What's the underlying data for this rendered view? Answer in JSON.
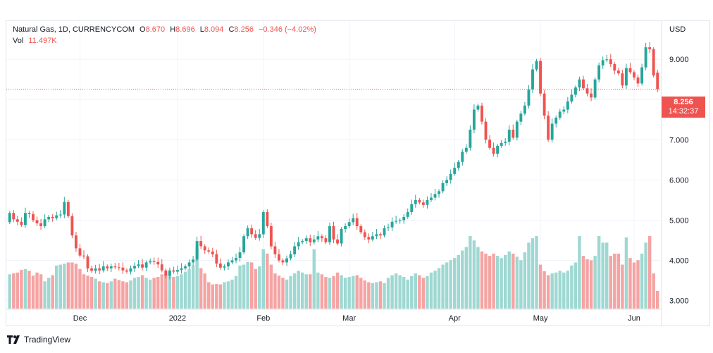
{
  "legend": {
    "symbol": "Natural Gas, 1D, CURRENCYCOM",
    "open_label": "O",
    "open": "8.670",
    "high_label": "H",
    "high": "8.696",
    "low_label": "L",
    "low": "8.094",
    "close_label": "C",
    "close": "8.256",
    "change": "−0.346 (−4.02%)",
    "vol_label": "Vol",
    "vol": "11.497K"
  },
  "axis": {
    "currency": "USD"
  },
  "last_price": {
    "price": "8.256",
    "countdown": "14:32:37"
  },
  "branding": {
    "logo_text": "TradingView"
  },
  "colors": {
    "up": "#26a69a",
    "down": "#ef5350",
    "vol_up": "#9fd8d2",
    "vol_down": "#f5a3a3",
    "grid": "#f0f3fa",
    "text": "#131722"
  },
  "chart_data": {
    "type": "candlestick",
    "y_ticks": [
      3.0,
      4.0,
      5.0,
      6.0,
      7.0,
      8.0,
      9.0
    ],
    "y_tick_labels": [
      "3.000",
      "4.000",
      "5.000",
      "6.000",
      "7.000",
      "",
      "9.000"
    ],
    "ylim": [
      2.8,
      9.95
    ],
    "x_ticks": [
      {
        "index": 18,
        "label": "Dec"
      },
      {
        "index": 43,
        "label": "2022"
      },
      {
        "index": 65,
        "label": "Feb"
      },
      {
        "index": 87,
        "label": "Mar"
      },
      {
        "index": 114,
        "label": "Apr"
      },
      {
        "index": 136,
        "label": "May"
      },
      {
        "index": 160,
        "label": "Jun"
      }
    ],
    "closes": [
      5.18,
      5.02,
      4.96,
      4.88,
      5.18,
      5.15,
      5.0,
      4.92,
      4.85,
      5.02,
      5.08,
      5.05,
      5.12,
      5.14,
      5.45,
      5.1,
      4.62,
      4.3,
      4.12,
      4.1,
      3.8,
      3.74,
      3.8,
      3.75,
      3.85,
      3.8,
      3.85,
      3.83,
      3.82,
      3.75,
      3.72,
      3.8,
      3.86,
      3.9,
      3.82,
      3.95,
      3.98,
      3.96,
      3.9,
      3.75,
      3.62,
      3.75,
      3.72,
      3.76,
      3.8,
      3.85,
      3.95,
      4.02,
      4.48,
      4.35,
      4.25,
      4.22,
      4.15,
      3.92,
      3.82,
      3.85,
      3.95,
      4.0,
      4.06,
      4.2,
      4.6,
      4.8,
      4.65,
      4.56,
      4.65,
      5.2,
      4.85,
      4.35,
      4.15,
      4.0,
      3.95,
      4.05,
      4.15,
      4.35,
      4.45,
      4.48,
      4.55,
      4.45,
      4.52,
      4.6,
      4.55,
      4.45,
      4.85,
      4.52,
      4.42,
      4.78,
      4.85,
      4.95,
      5.05,
      4.85,
      4.7,
      4.58,
      4.52,
      4.6,
      4.65,
      4.62,
      4.8,
      4.82,
      4.96,
      4.98,
      5.0,
      5.08,
      5.2,
      5.4,
      5.5,
      5.44,
      5.38,
      5.5,
      5.56,
      5.65,
      5.72,
      5.92,
      6.0,
      6.15,
      6.3,
      6.45,
      6.7,
      6.8,
      7.25,
      7.75,
      7.85,
      7.45,
      7.0,
      6.8,
      6.65,
      6.85,
      6.92,
      6.95,
      7.25,
      7.05,
      7.45,
      7.65,
      7.85,
      8.25,
      8.75,
      8.96,
      8.15,
      7.6,
      7.0,
      7.4,
      7.55,
      7.7,
      7.75,
      7.95,
      8.12,
      8.3,
      8.5,
      8.28,
      8.15,
      8.05,
      8.5,
      8.85,
      8.98,
      9.0,
      8.88,
      8.72,
      8.65,
      8.35,
      8.78,
      8.68,
      8.55,
      8.4,
      8.8,
      9.3,
      9.25,
      8.6,
      8.256
    ],
    "opens": [
      4.95,
      5.18,
      5.02,
      4.96,
      4.88,
      5.18,
      5.15,
      5.0,
      4.92,
      4.85,
      5.02,
      5.08,
      5.05,
      5.12,
      5.14,
      5.45,
      5.1,
      4.62,
      4.3,
      4.12,
      4.1,
      3.8,
      3.74,
      3.8,
      3.75,
      3.85,
      3.8,
      3.85,
      3.83,
      3.82,
      3.75,
      3.72,
      3.8,
      3.86,
      3.9,
      3.82,
      3.95,
      3.98,
      3.96,
      3.9,
      3.75,
      3.62,
      3.75,
      3.72,
      3.76,
      3.8,
      3.85,
      3.95,
      4.02,
      4.48,
      4.35,
      4.25,
      4.22,
      4.15,
      3.92,
      3.82,
      3.85,
      3.95,
      4.0,
      4.06,
      4.2,
      4.6,
      4.8,
      4.65,
      4.56,
      4.65,
      5.2,
      4.85,
      4.35,
      4.15,
      4.0,
      3.95,
      4.05,
      4.15,
      4.35,
      4.45,
      4.48,
      4.55,
      4.45,
      4.52,
      4.6,
      4.55,
      4.45,
      4.85,
      4.52,
      4.42,
      4.78,
      4.85,
      4.95,
      5.05,
      4.85,
      4.7,
      4.58,
      4.52,
      4.6,
      4.65,
      4.62,
      4.8,
      4.82,
      4.96,
      4.98,
      5.0,
      5.08,
      5.2,
      5.4,
      5.5,
      5.44,
      5.38,
      5.5,
      5.56,
      5.65,
      5.72,
      5.92,
      6.0,
      6.15,
      6.3,
      6.45,
      6.7,
      6.8,
      7.25,
      7.75,
      7.85,
      7.45,
      7.0,
      6.8,
      6.65,
      6.85,
      6.92,
      6.95,
      7.25,
      7.05,
      7.45,
      7.65,
      7.85,
      8.25,
      8.75,
      8.96,
      8.15,
      7.6,
      7.0,
      7.4,
      7.55,
      7.7,
      7.75,
      7.95,
      8.12,
      8.3,
      8.5,
      8.28,
      8.15,
      8.05,
      8.5,
      8.85,
      8.98,
      9.0,
      8.88,
      8.72,
      8.65,
      8.35,
      8.78,
      8.68,
      8.55,
      8.4,
      8.8,
      9.3,
      9.25,
      8.67
    ],
    "volumes": [
      0.78,
      0.8,
      0.82,
      0.88,
      0.9,
      0.86,
      0.75,
      0.82,
      0.78,
      0.62,
      0.7,
      0.76,
      0.98,
      1.0,
      1.02,
      1.05,
      1.05,
      1.02,
      0.9,
      0.78,
      0.75,
      0.72,
      0.68,
      0.62,
      0.6,
      0.58,
      0.62,
      0.68,
      0.65,
      0.62,
      0.6,
      0.64,
      0.7,
      0.72,
      0.76,
      0.7,
      0.66,
      0.7,
      0.72,
      0.78,
      0.8,
      0.76,
      0.72,
      0.74,
      0.78,
      0.84,
      0.9,
      0.98,
      1.4,
      0.92,
      0.8,
      0.6,
      0.55,
      0.56,
      0.55,
      0.6,
      0.62,
      0.66,
      0.74,
      0.98,
      1.0,
      1.06,
      1.05,
      0.9,
      0.96,
      1.35,
      1.25,
      1.0,
      0.8,
      0.75,
      0.7,
      0.66,
      0.74,
      0.8,
      0.86,
      0.82,
      0.78,
      0.78,
      1.35,
      0.82,
      0.78,
      0.72,
      0.7,
      0.74,
      0.82,
      0.76,
      0.7,
      0.72,
      0.74,
      0.76,
      0.7,
      0.64,
      0.6,
      0.58,
      0.6,
      0.62,
      0.58,
      0.7,
      0.76,
      0.8,
      0.76,
      0.72,
      0.66,
      0.74,
      0.8,
      0.76,
      0.7,
      0.74,
      0.82,
      0.86,
      0.92,
      1.0,
      1.05,
      1.1,
      1.15,
      1.22,
      1.32,
      1.4,
      1.65,
      1.55,
      1.4,
      1.3,
      1.25,
      1.2,
      1.25,
      1.2,
      1.15,
      1.22,
      1.3,
      1.25,
      1.18,
      1.1,
      1.28,
      1.5,
      1.6,
      1.65,
      1.0,
      0.85,
      0.76,
      0.8,
      0.82,
      0.86,
      0.82,
      0.86,
      0.98,
      1.05,
      1.65,
      1.2,
      1.12,
      1.1,
      1.2,
      1.65,
      1.5,
      1.5,
      1.2,
      1.25,
      1.25,
      1.0,
      1.62,
      1.15,
      1.05,
      1.1,
      1.25,
      1.5,
      1.65,
      0.8,
      0.4
    ],
    "last_price": 8.256
  }
}
